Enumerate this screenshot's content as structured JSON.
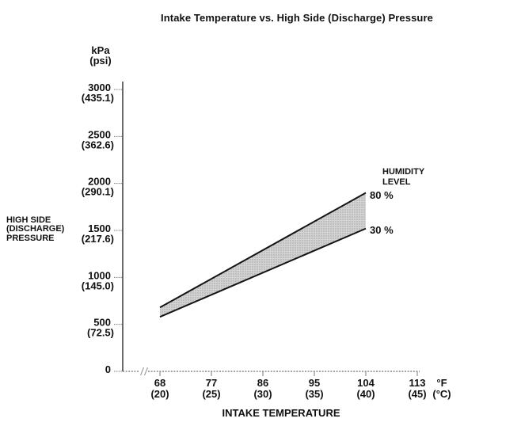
{
  "page": {
    "background": "#ffffff"
  },
  "chart_data": {
    "type": "area",
    "title": "Intake Temperature vs. High Side (Discharge) Pressure",
    "xlabel": "INTAKE TEMPERATURE",
    "ylabel": "HIGH SIDE (DISCHARGE) PRESSURE",
    "ylabel_lines": [
      "HIGH SIDE",
      "(DISCHARGE)",
      "PRESSURE"
    ],
    "y_unit_primary": "kPa",
    "y_unit_secondary": "(psi)",
    "x_unit_primary": "°F",
    "x_unit_secondary": "(°C)",
    "xlim": [
      68,
      113
    ],
    "ylim": [
      0,
      3000
    ],
    "grid": false,
    "x_axis_break_near_origin": true,
    "x_ticks": [
      {
        "value": 68,
        "label_f": "68",
        "label_c": "(20)"
      },
      {
        "value": 77,
        "label_f": "77",
        "label_c": "(25)"
      },
      {
        "value": 86,
        "label_f": "86",
        "label_c": "(30)"
      },
      {
        "value": 95,
        "label_f": "95",
        "label_c": "(35)"
      },
      {
        "value": 104,
        "label_f": "104",
        "label_c": "(40)"
      },
      {
        "value": 113,
        "label_f": "113",
        "label_c": "(45)"
      }
    ],
    "y_ticks": [
      {
        "value": 3000,
        "label_kpa": "3000",
        "label_psi": "(435.1)"
      },
      {
        "value": 2500,
        "label_kpa": "2500",
        "label_psi": "(362.6)"
      },
      {
        "value": 2000,
        "label_kpa": "2000",
        "label_psi": "(290.1)"
      },
      {
        "value": 1500,
        "label_kpa": "1500",
        "label_psi": "(217.6)"
      },
      {
        "value": 1000,
        "label_kpa": "1000",
        "label_psi": "(145.0)"
      },
      {
        "value": 500,
        "label_kpa": "500",
        "label_psi": "(72.5)"
      },
      {
        "value": 0,
        "label_kpa": "0",
        "label_psi": ""
      }
    ],
    "legend": {
      "title_lines": [
        "HUMIDITY",
        "LEVEL"
      ],
      "position": "right"
    },
    "series": [
      {
        "name": "80 %",
        "humidity_percent": 80,
        "points": [
          [
            68,
            680
          ],
          [
            104,
            1900
          ]
        ]
      },
      {
        "name": "30 %",
        "humidity_percent": 30,
        "points": [
          [
            68,
            580
          ],
          [
            104,
            1520
          ]
        ]
      }
    ],
    "colors": {
      "band_fill": "#d4d4d4",
      "band_dot": "#8e8e8e",
      "band_edge": "#141414",
      "axis": "#2b2b2b",
      "axis_dotted": "#6e6e6e",
      "tick": "#7a7a7a",
      "break_mark": "#999999",
      "text": "#111111",
      "background": "#ffffff"
    }
  }
}
